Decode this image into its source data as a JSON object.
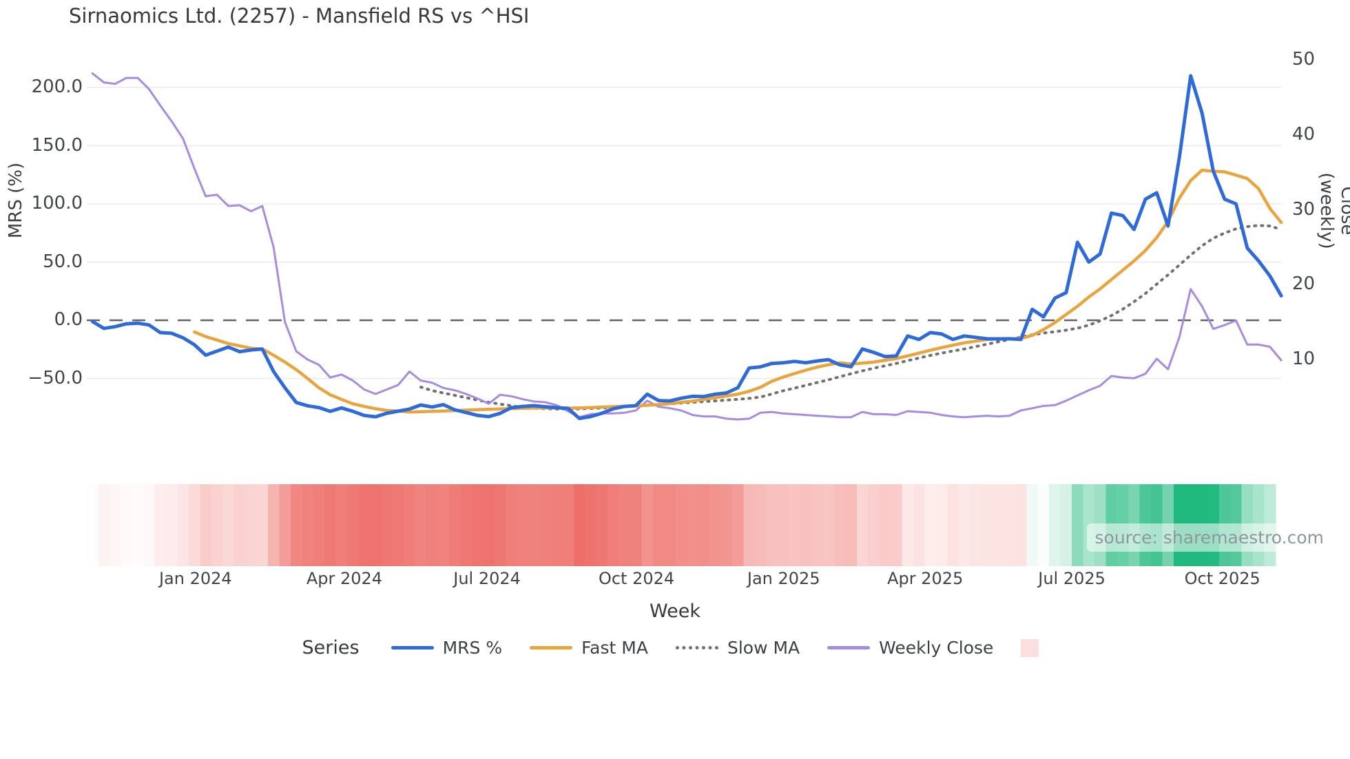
{
  "title": "Sirnaomics Ltd. (2257) - Mansfield RS vs ^HSI",
  "source_label": "source: sharemaestro.com",
  "colors": {
    "mrs": "#2f6bd8",
    "fast_ma": "#e9a43e",
    "slow_ma": "#6f7072",
    "weekly_close": "#a78be0",
    "zero_line": "#5f6368",
    "gridline": "#e9ebee",
    "heat_negative": "#ee6e69",
    "heat_positive": "#20b97d",
    "heat_legend_swatch": "#fbdee0"
  },
  "legend": {
    "series_label": "Series",
    "items": [
      {
        "label": "MRS %"
      },
      {
        "label": "Fast MA"
      },
      {
        "label": "Slow MA"
      },
      {
        "label": "Weekly Close"
      },
      {
        "label": ""
      }
    ]
  },
  "chart_data": {
    "type": "line",
    "x_axis": {
      "label": "Week",
      "unit": "week-index",
      "ticks": [
        {
          "label": "Jan 2024",
          "week": 9.1
        },
        {
          "label": "Apr 2024",
          "week": 22.25
        },
        {
          "label": "Jul 2024",
          "week": 34.85
        },
        {
          "label": "Oct 2024",
          "week": 48.05
        },
        {
          "label": "Jan 2025",
          "week": 61.05
        },
        {
          "label": "Apr 2025",
          "week": 73.55
        },
        {
          "label": "Jul 2025",
          "week": 86.5
        },
        {
          "label": "Oct 2025",
          "week": 99.8
        }
      ]
    },
    "left_axis": {
      "label": "MRS (%)",
      "tick_labels": [
        "200.0",
        "150.0",
        "100.0",
        "50.0",
        "0.0",
        "−50.0"
      ],
      "tick_values": [
        200,
        150,
        100,
        50,
        0,
        -50
      ],
      "zero_reference_line": true
    },
    "right_axis": {
      "label": "Close (weekly)",
      "tick_labels": [
        "50",
        "40",
        "30",
        "20",
        "10"
      ],
      "tick_values": [
        50,
        40,
        30,
        20,
        10
      ]
    },
    "legend_position": "bottom",
    "grid": "horizontal-only",
    "series": [
      {
        "name": "MRS %",
        "axis": "left",
        "style": "solid",
        "color_key": "mrs",
        "values": [
          -1,
          -7,
          -5.5,
          -3,
          -2.5,
          -4,
          -10.6,
          -11.2,
          -15,
          -21,
          -30,
          -26.5,
          -23,
          -27,
          -25.5,
          -24.7,
          -44,
          -58,
          -70.6,
          -73.5,
          -75,
          -78.2,
          -75.3,
          -78.2,
          -81.8,
          -82.9,
          -79.9,
          -78.1,
          -76.3,
          -72.8,
          -74.5,
          -72.5,
          -76.9,
          -79.3,
          -81.7,
          -82.8,
          -80,
          -75.1,
          -74,
          -73.4,
          -74.3,
          -75.1,
          -75.7,
          -84.3,
          -82.8,
          -79.9,
          -76,
          -74,
          -73.4,
          -63.5,
          -69,
          -69.3,
          -67,
          -65.3,
          -65.5,
          -63.5,
          -62.4,
          -58,
          -41,
          -40,
          -37.1,
          -36.5,
          -35.3,
          -36.5,
          -35,
          -33.8,
          -38.2,
          -40,
          -24.7,
          -27.6,
          -31.2,
          -30.6,
          -13.5,
          -16.5,
          -10.6,
          -11.8,
          -16.5,
          -13.5,
          -14.7,
          -15.9,
          -16,
          -15.9,
          -16.5,
          9.4,
          2.9,
          19,
          23.7,
          67,
          50,
          57,
          92,
          90,
          78,
          104,
          109.5,
          81,
          140,
          210,
          178,
          128,
          104,
          100,
          62,
          51,
          38,
          21
        ]
      },
      {
        "name": "Fast MA",
        "axis": "left",
        "style": "solid",
        "color_key": "fast_ma",
        "values": [
          null,
          null,
          null,
          null,
          null,
          null,
          null,
          null,
          null,
          -10,
          -14,
          -17,
          -20,
          -22,
          -24,
          -24.7,
          -30,
          -36,
          -42.4,
          -50,
          -58,
          -64,
          -68,
          -71.8,
          -74,
          -76,
          -77.5,
          -78,
          -78.8,
          -78.5,
          -78.3,
          -78,
          -77.6,
          -77.2,
          -76.8,
          -76.5,
          -76.2,
          -75.9,
          -75.6,
          -75.4,
          -75.3,
          -75.4,
          -75.5,
          -75.3,
          -75.0,
          -74.6,
          -74.2,
          -73.8,
          -73.5,
          -73,
          -72.4,
          -71.6,
          -70.5,
          -69.4,
          -68,
          -66.5,
          -65,
          -63.5,
          -61,
          -57.6,
          -52.4,
          -48.8,
          -45.8,
          -42.9,
          -40.3,
          -38.2,
          -36.5,
          -37.6,
          -36.8,
          -35.9,
          -34.4,
          -32.9,
          -30.6,
          -28.2,
          -25.8,
          -23.5,
          -21.4,
          -19.4,
          -17.9,
          -16.5,
          -16,
          -15.9,
          -15.6,
          -13,
          -8,
          -2,
          5,
          12,
          20,
          27,
          35,
          43,
          51,
          60,
          71,
          85,
          105,
          120,
          129,
          128,
          127.5,
          124.7,
          121.8,
          113,
          96,
          84
        ]
      },
      {
        "name": "Slow MA",
        "axis": "left",
        "style": "dotted",
        "color_key": "slow_ma",
        "values": [
          null,
          null,
          null,
          null,
          null,
          null,
          null,
          null,
          null,
          null,
          null,
          null,
          null,
          null,
          null,
          null,
          null,
          null,
          null,
          null,
          null,
          null,
          null,
          null,
          null,
          null,
          null,
          null,
          null,
          -57.4,
          -60.4,
          -62.5,
          -64.5,
          -66.5,
          -68.5,
          -70.5,
          -72,
          -73.5,
          -74.8,
          -75.5,
          -76,
          -76.3,
          -76.3,
          -76.1,
          -75.8,
          -75.4,
          -74.9,
          -74.3,
          -73.7,
          -73.1,
          -72.4,
          -71.8,
          -71.1,
          -70.5,
          -69.9,
          -69.3,
          -68.6,
          -67.9,
          -67.1,
          -66,
          -63.3,
          -60.6,
          -58.3,
          -55.9,
          -53.5,
          -51.2,
          -48.5,
          -45.9,
          -43.5,
          -41.2,
          -39.1,
          -37.1,
          -34.7,
          -32.4,
          -30.2,
          -28.2,
          -26.4,
          -24.7,
          -22.6,
          -20.6,
          -18.5,
          -16.5,
          -14.5,
          -12.5,
          -11,
          -9.8,
          -8.5,
          -6.8,
          -4.2,
          -0.5,
          4,
          9.5,
          16,
          23,
          31,
          39,
          47.5,
          56,
          64,
          70.5,
          75,
          78.5,
          80.5,
          81.5,
          81,
          78
        ]
      },
      {
        "name": "Weekly Close",
        "axis": "right",
        "style": "solid",
        "color_key": "weekly_close",
        "values": [
          48.2,
          47.0,
          46.8,
          47.6,
          47.6,
          46.1,
          43.9,
          41.8,
          39.5,
          35.5,
          31.8,
          32.0,
          30.5,
          30.6,
          29.8,
          30.5,
          25.0,
          15.0,
          11.1,
          10.0,
          9.3,
          7.6,
          8.0,
          7.2,
          6.0,
          5.4,
          6.0,
          6.6,
          8.4,
          7.2,
          6.9,
          6.2,
          5.9,
          5.4,
          4.8,
          4.1,
          5.3,
          5.1,
          4.7,
          4.4,
          4.3,
          3.9,
          3.1,
          2.3,
          2.7,
          2.8,
          2.8,
          2.9,
          3.2,
          4.5,
          3.7,
          3.5,
          3.2,
          2.6,
          2.4,
          2.4,
          2.1,
          2.0,
          2.1,
          2.9,
          3.0,
          2.8,
          2.7,
          2.6,
          2.5,
          2.4,
          2.3,
          2.3,
          3.0,
          2.7,
          2.7,
          2.6,
          3.1,
          3.0,
          2.9,
          2.6,
          2.4,
          2.3,
          2.4,
          2.5,
          2.4,
          2.5,
          3.2,
          3.5,
          3.8,
          3.9,
          4.5,
          5.2,
          5.9,
          6.5,
          7.8,
          7.6,
          7.5,
          8.1,
          10.1,
          8.7,
          13.0,
          19.4,
          17.1,
          14.1,
          14.6,
          15.2,
          12.0,
          12.0,
          11.7,
          9.9
        ]
      }
    ],
    "heatmap_band": {
      "description": "weekly stripe band below chart; color intensity follows MRS % (red negative, green positive)",
      "source_series": "MRS %"
    }
  }
}
